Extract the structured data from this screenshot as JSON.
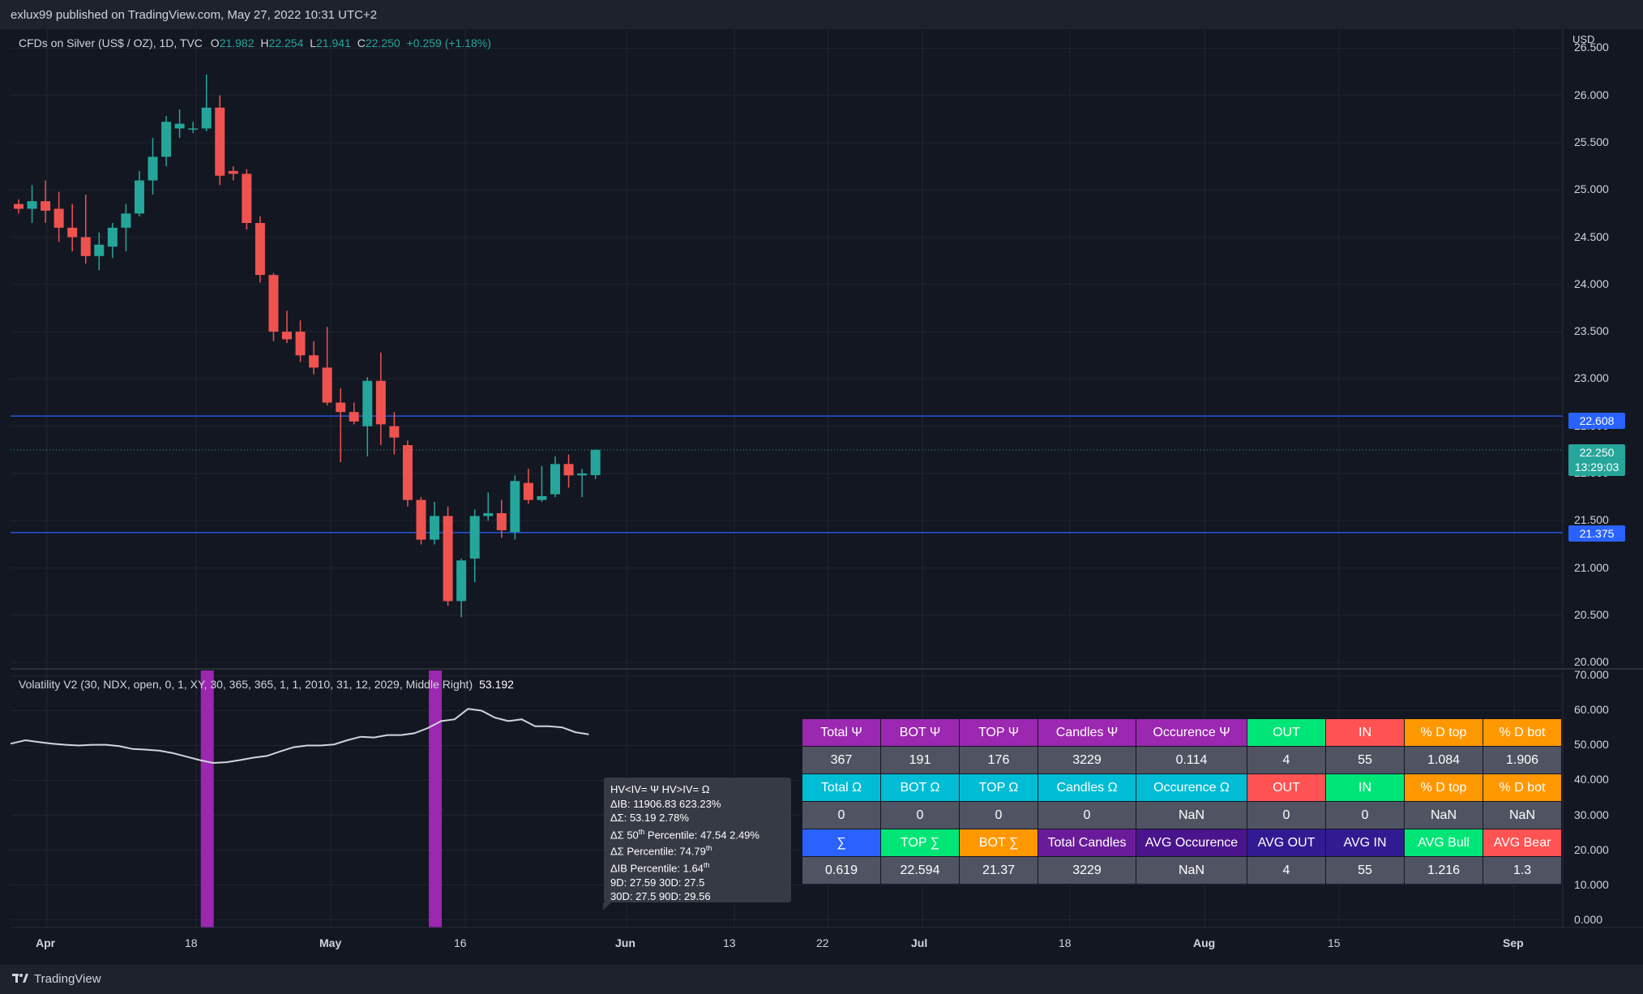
{
  "header": {
    "published": "exlux99 published on TradingView.com, May 27, 2022 10:31 UTC+2"
  },
  "legend": {
    "symbol": "CFDs on Silver (US$ / OZ), 1D, TVC",
    "open_label": "O",
    "open": "21.982",
    "high_label": "H",
    "high": "22.254",
    "low_label": "L",
    "low": "21.941",
    "close_label": "C",
    "close": "22.250",
    "change": "+0.259 (+1.18%)"
  },
  "price_axis": {
    "currency": "USD",
    "ticks": [
      "26.500",
      "26.000",
      "25.500",
      "25.000",
      "24.500",
      "24.000",
      "23.500",
      "23.000",
      "22.500",
      "22.000",
      "21.500",
      "21.000",
      "20.500",
      "20.000"
    ],
    "tags": {
      "upper_line": "22.608",
      "last_price": "22.250",
      "countdown": "13:29:03",
      "lower_line": "21.375"
    }
  },
  "indicator": {
    "name": "Volatility V2 (30, NDX, open, 0, 1, XY, 30, 365, 365, 1, 1, 2010, 31, 12, 2029, Middle Right)",
    "value": "53.192",
    "ticks": [
      "70.000",
      "60.000",
      "50.000",
      "40.000",
      "30.000",
      "20.000",
      "10.000",
      "0.000"
    ]
  },
  "time_axis": [
    "Apr",
    "18",
    "May",
    "16",
    "Jun",
    "13",
    "22",
    "Jul",
    "18",
    "Aug",
    "15",
    "Sep"
  ],
  "tooltip": {
    "l1": "HV<IV= Ψ  HV>IV= Ω",
    "l2": "ΔIB: 11906.83  623.23%",
    "l3": "ΔΣ: 53.19  2.78%",
    "l4a": "ΔΣ 50",
    "l4s": "th",
    "l4b": " Percentile: 47.54  2.49%",
    "l5a": "ΔΣ Percentile: 74.79",
    "l5s": "th",
    "l6a": "ΔIB Percentile: 1.64",
    "l6s": "th",
    "l7": "9D: 27.59  30D: 27.5",
    "l8": "30D: 27.5  90D: 29.56"
  },
  "table": {
    "rows": [
      [
        [
          "Total Ψ",
          "#9c27b0"
        ],
        [
          "BOT Ψ",
          "#9c27b0"
        ],
        [
          "TOP Ψ",
          "#9c27b0"
        ],
        [
          "Candles Ψ",
          "#9c27b0"
        ],
        [
          "Occurence Ψ",
          "#9c27b0"
        ],
        [
          "OUT",
          "#00e676"
        ],
        [
          "IN",
          "#ff5252"
        ],
        [
          "% D top",
          "#ff9800"
        ],
        [
          "% D bot",
          "#ff9800"
        ]
      ],
      [
        [
          "367",
          ""
        ],
        [
          "191",
          ""
        ],
        [
          "176",
          ""
        ],
        [
          "3229",
          ""
        ],
        [
          "0.114",
          ""
        ],
        [
          "4",
          ""
        ],
        [
          "55",
          ""
        ],
        [
          "1.084",
          ""
        ],
        [
          "1.906",
          ""
        ]
      ],
      [
        [
          "Total Ω",
          "#00bcd4"
        ],
        [
          "BOT Ω",
          "#00bcd4"
        ],
        [
          "TOP Ω",
          "#00bcd4"
        ],
        [
          "Candles Ω",
          "#00bcd4"
        ],
        [
          "Occurence Ω",
          "#00bcd4"
        ],
        [
          "OUT",
          "#ff5252"
        ],
        [
          "IN",
          "#00e676"
        ],
        [
          "% D top",
          "#ff9800"
        ],
        [
          "% D bot",
          "#ff9800"
        ]
      ],
      [
        [
          "0",
          ""
        ],
        [
          "0",
          ""
        ],
        [
          "0",
          ""
        ],
        [
          "0",
          ""
        ],
        [
          "NaN",
          ""
        ],
        [
          "0",
          ""
        ],
        [
          "0",
          ""
        ],
        [
          "NaN",
          ""
        ],
        [
          "NaN",
          ""
        ]
      ],
      [
        [
          "∑",
          "#2962ff"
        ],
        [
          "TOP ∑",
          "#00e676"
        ],
        [
          "BOT ∑",
          "#ff9800"
        ],
        [
          "Total Candles",
          "#6a1b9a"
        ],
        [
          "AVG Occurence",
          "#4a148c"
        ],
        [
          "AVG OUT",
          "#311b92"
        ],
        [
          "AVG IN",
          "#311b92"
        ],
        [
          "AVG Bull",
          "#00e676"
        ],
        [
          "AVG Bear",
          "#ff5252"
        ]
      ],
      [
        [
          "0.619",
          ""
        ],
        [
          "22.594",
          ""
        ],
        [
          "21.37",
          ""
        ],
        [
          "3229",
          ""
        ],
        [
          "NaN",
          ""
        ],
        [
          "4",
          ""
        ],
        [
          "55",
          ""
        ],
        [
          "1.216",
          ""
        ],
        [
          "1.3",
          ""
        ]
      ]
    ]
  },
  "colors": {
    "up": "#26a69a",
    "down": "#ef5350",
    "hline": "#2962ff",
    "band": "#9c27b0",
    "hv_line": "#d1d4dc"
  },
  "chart_data": {
    "type": "candlestick",
    "symbol": "CFDs on Silver (US$ / OZ)",
    "interval": "1D",
    "ylim": [
      19.95,
      26.7
    ],
    "horizontal_lines": [
      22.608,
      21.375
    ],
    "candles": [
      {
        "o": 24.85,
        "h": 24.9,
        "l": 24.75,
        "c": 24.8
      },
      {
        "o": 24.8,
        "h": 25.05,
        "l": 24.65,
        "c": 24.88
      },
      {
        "o": 24.88,
        "h": 25.1,
        "l": 24.65,
        "c": 24.78
      },
      {
        "o": 24.8,
        "h": 24.98,
        "l": 24.45,
        "c": 24.6
      },
      {
        "o": 24.6,
        "h": 24.85,
        "l": 24.35,
        "c": 24.5
      },
      {
        "o": 24.5,
        "h": 24.95,
        "l": 24.22,
        "c": 24.3
      },
      {
        "o": 24.3,
        "h": 24.55,
        "l": 24.15,
        "c": 24.42
      },
      {
        "o": 24.4,
        "h": 24.65,
        "l": 24.28,
        "c": 24.6
      },
      {
        "o": 24.6,
        "h": 24.85,
        "l": 24.35,
        "c": 24.75
      },
      {
        "o": 24.75,
        "h": 25.2,
        "l": 24.72,
        "c": 25.1
      },
      {
        "o": 25.1,
        "h": 25.55,
        "l": 24.95,
        "c": 25.35
      },
      {
        "o": 25.35,
        "h": 25.78,
        "l": 25.25,
        "c": 25.72
      },
      {
        "o": 25.65,
        "h": 25.85,
        "l": 25.55,
        "c": 25.7
      },
      {
        "o": 25.65,
        "h": 25.72,
        "l": 25.6,
        "c": 25.65
      },
      {
        "o": 25.65,
        "h": 26.22,
        "l": 25.62,
        "c": 25.87
      },
      {
        "o": 25.87,
        "h": 26.0,
        "l": 25.05,
        "c": 25.15
      },
      {
        "o": 25.2,
        "h": 25.25,
        "l": 25.1,
        "c": 25.17
      },
      {
        "o": 25.17,
        "h": 25.22,
        "l": 24.58,
        "c": 24.65
      },
      {
        "o": 24.65,
        "h": 24.72,
        "l": 24.02,
        "c": 24.1
      },
      {
        "o": 24.1,
        "h": 24.12,
        "l": 23.4,
        "c": 23.5
      },
      {
        "o": 23.5,
        "h": 23.72,
        "l": 23.38,
        "c": 23.42
      },
      {
        "o": 23.5,
        "h": 23.62,
        "l": 23.18,
        "c": 23.25
      },
      {
        "o": 23.25,
        "h": 23.4,
        "l": 23.05,
        "c": 23.12
      },
      {
        "o": 23.12,
        "h": 23.55,
        "l": 22.72,
        "c": 22.75
      },
      {
        "o": 22.75,
        "h": 22.9,
        "l": 22.12,
        "c": 22.65
      },
      {
        "o": 22.65,
        "h": 22.75,
        "l": 22.52,
        "c": 22.55
      },
      {
        "o": 22.5,
        "h": 23.02,
        "l": 22.18,
        "c": 22.98
      },
      {
        "o": 22.98,
        "h": 23.28,
        "l": 22.3,
        "c": 22.52
      },
      {
        "o": 22.5,
        "h": 22.65,
        "l": 22.2,
        "c": 22.38
      },
      {
        "o": 22.3,
        "h": 22.35,
        "l": 21.65,
        "c": 21.72
      },
      {
        "o": 21.72,
        "h": 21.75,
        "l": 21.25,
        "c": 21.3
      },
      {
        "o": 21.3,
        "h": 21.7,
        "l": 21.25,
        "c": 21.55
      },
      {
        "o": 21.55,
        "h": 21.65,
        "l": 20.6,
        "c": 20.65
      },
      {
        "o": 20.65,
        "h": 21.1,
        "l": 20.48,
        "c": 21.08
      },
      {
        "o": 21.1,
        "h": 21.62,
        "l": 20.85,
        "c": 21.55
      },
      {
        "o": 21.55,
        "h": 21.8,
        "l": 21.5,
        "c": 21.58
      },
      {
        "o": 21.58,
        "h": 21.72,
        "l": 21.32,
        "c": 21.4
      },
      {
        "o": 21.38,
        "h": 21.98,
        "l": 21.3,
        "c": 21.92
      },
      {
        "o": 21.9,
        "h": 22.05,
        "l": 21.68,
        "c": 21.72
      },
      {
        "o": 21.72,
        "h": 22.08,
        "l": 21.7,
        "c": 21.76
      },
      {
        "o": 21.78,
        "h": 22.18,
        "l": 21.75,
        "c": 22.1
      },
      {
        "o": 22.1,
        "h": 22.2,
        "l": 21.85,
        "c": 21.98
      },
      {
        "o": 21.98,
        "h": 22.05,
        "l": 21.75,
        "c": 22.0
      },
      {
        "o": 21.982,
        "h": 22.254,
        "l": 21.941,
        "c": 22.25
      }
    ],
    "volatility_series": [
      50.5,
      51.5,
      51,
      50.5,
      50.2,
      50,
      50.2,
      50.2,
      49.8,
      49,
      48.8,
      48.5,
      47.8,
      46.8,
      45.8,
      45,
      45.2,
      45.8,
      46.5,
      47,
      48.3,
      49.5,
      50,
      50,
      50.3,
      51.5,
      52.5,
      52.3,
      53,
      53,
      53.5,
      55,
      57,
      57.5,
      60.5,
      60,
      58,
      57,
      57.5,
      55.5,
      55.5,
      55.2,
      53.8,
      53.2
    ],
    "volatility_ylim": [
      -2.2,
      71.5
    ],
    "band_candle_index": [
      14,
      31
    ]
  }
}
